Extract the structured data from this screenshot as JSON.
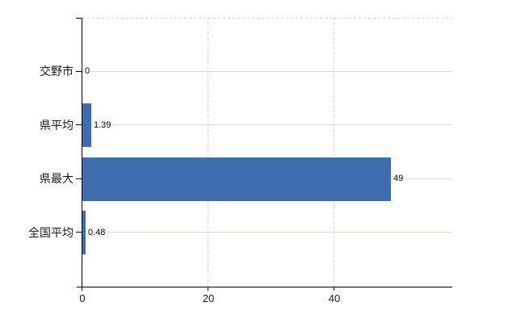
{
  "chart_data": {
    "type": "bar",
    "orientation": "horizontal",
    "title": "",
    "xlabel": "",
    "ylabel": "",
    "categories": [
      "交野市",
      "県平均",
      "県最大",
      "全国平均"
    ],
    "values": [
      0,
      1.39,
      49,
      0.48
    ],
    "value_labels": [
      "0",
      "1.39",
      "49",
      "0.48"
    ],
    "x_ticks": [
      0,
      20,
      40
    ],
    "x_tick_labels": [
      "0",
      "20",
      "40"
    ],
    "xlim": [
      0,
      58.8
    ],
    "grid": true,
    "legend": "none",
    "colors": {
      "bar": "#3e6cae",
      "axis": "#000000",
      "gridline_horizontal": "#d7dcd2",
      "gridline_vertical": "#d2d2d2",
      "plot_top_border": "#cfcfcf",
      "label_text": "#1a1a1a",
      "value_text": "#000000",
      "background": "#ffffff"
    }
  }
}
